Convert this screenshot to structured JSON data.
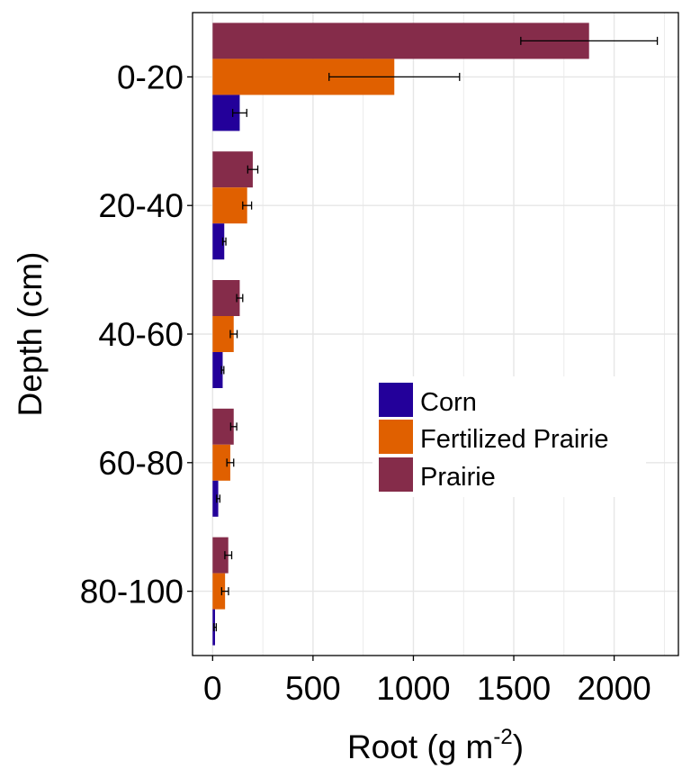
{
  "chart_data": {
    "type": "bar",
    "orientation": "horizontal",
    "categories": [
      "0-20",
      "20-40",
      "40-60",
      "60-80",
      "80-100"
    ],
    "series": [
      {
        "name": "Corn",
        "color": "#23009a",
        "values": [
          135,
          58,
          50,
          28,
          12
        ],
        "errors": [
          35,
          8,
          6,
          8,
          6
        ]
      },
      {
        "name": "Fertilized Prairie",
        "color": "#e06000",
        "values": [
          905,
          172,
          105,
          88,
          62
        ],
        "errors": [
          325,
          22,
          17,
          17,
          17
        ]
      },
      {
        "name": "Prairie",
        "color": "#852c4a",
        "values": [
          1875,
          200,
          135,
          105,
          78
        ],
        "errors": [
          340,
          25,
          15,
          15,
          17
        ]
      }
    ],
    "xlabel": "Root (g m",
    "xlabel_sup": "-2",
    "xlabel_end": ")",
    "ylabel": "Depth (cm)",
    "xticks": [
      0,
      500,
      1000,
      1500,
      2000
    ],
    "xlim": [
      -100,
      2320
    ],
    "grid": true,
    "legend": "center-right"
  }
}
